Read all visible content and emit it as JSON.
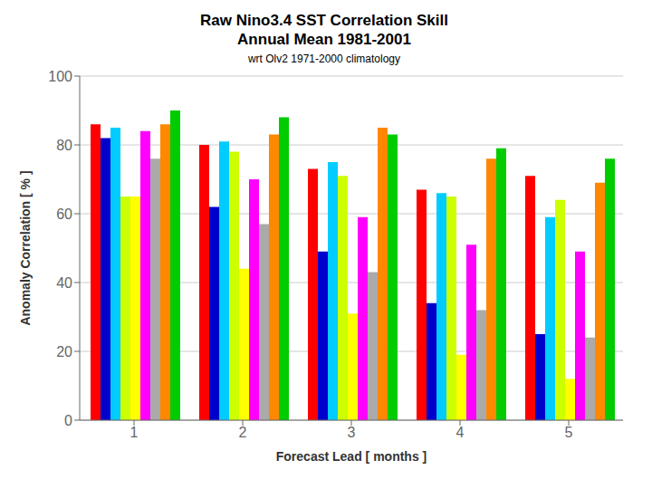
{
  "chart_data": {
    "type": "bar",
    "title": "Raw Nino3.4 SST Correlation Skill\nAnnual Mean 1981-2001",
    "subtitle": "wrt Olv2 1971-2000 climatology",
    "x_label": "Forecast Lead [ months ]",
    "y_label": "Anomaly Correlation [ % ]",
    "categories": [
      "1",
      "2",
      "3",
      "4",
      "5"
    ],
    "series": [
      {
        "color": "#ff0000",
        "values": [
          86,
          80,
          73,
          67,
          71
        ]
      },
      {
        "color": "#0000cc",
        "values": [
          82,
          62,
          49,
          34,
          25
        ]
      },
      {
        "color": "#00ccff",
        "values": [
          85,
          81,
          75,
          66,
          59
        ]
      },
      {
        "color": "#ccff00",
        "values": [
          65,
          78,
          71,
          65,
          64
        ]
      },
      {
        "color": "#ffff00",
        "values": [
          65,
          44,
          31,
          19,
          12
        ]
      },
      {
        "color": "#ff00ff",
        "values": [
          84,
          70,
          59,
          51,
          49
        ]
      },
      {
        "color": "#aaaaaa",
        "values": [
          76,
          57,
          43,
          32,
          24
        ]
      },
      {
        "color": "#ff8800",
        "values": [
          86,
          83,
          85,
          76,
          69
        ]
      },
      {
        "color": "#00cc00",
        "values": [
          90,
          88,
          83,
          79,
          76
        ]
      }
    ],
    "ylim": [
      0,
      100
    ],
    "yticks": [
      0,
      20,
      40,
      60,
      80,
      100
    ],
    "grid": true
  }
}
